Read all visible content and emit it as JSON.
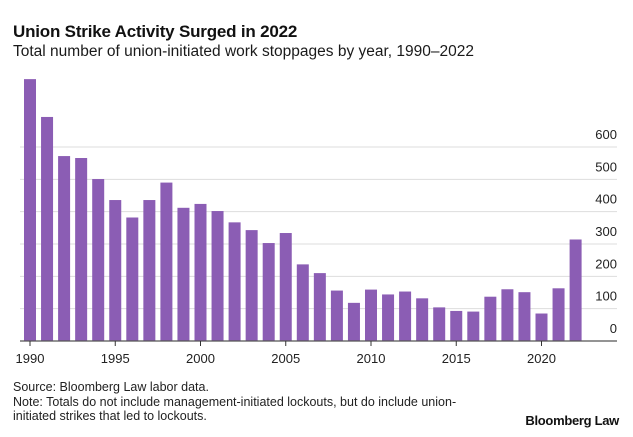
{
  "chart_data": {
    "type": "bar",
    "title": "Union Strike Activity Surged in 2022",
    "subtitle": "Total number of union-initiated work stoppages by year, 1990–2022",
    "xlabel": "",
    "ylabel": "",
    "categories": [
      1990,
      1991,
      1992,
      1993,
      1994,
      1995,
      1996,
      1997,
      1998,
      1999,
      2000,
      2001,
      2002,
      2003,
      2004,
      2005,
      2006,
      2007,
      2008,
      2009,
      2010,
      2011,
      2012,
      2013,
      2014,
      2015,
      2016,
      2017,
      2018,
      2019,
      2020,
      2021,
      2022
    ],
    "values": [
      810,
      693,
      572,
      566,
      501,
      436,
      382,
      436,
      490,
      412,
      424,
      402,
      367,
      343,
      303,
      334,
      237,
      210,
      156,
      118,
      159,
      144,
      153,
      132,
      104,
      93,
      91,
      137,
      160,
      151,
      85,
      163,
      314
    ],
    "ylim": [
      0,
      600
    ],
    "yticks": [
      0,
      100,
      200,
      300,
      400,
      500,
      600
    ],
    "xticks": [
      1990,
      1995,
      2000,
      2005,
      2010,
      2015,
      2020
    ],
    "grid": true,
    "y_axis_side": "right",
    "bar_color": "#8B5DB4"
  },
  "footer": {
    "source": "Source: Bloomberg Law labor data.",
    "note_line1": "Note: Totals do not include management-initiated lockouts, but do include union-",
    "note_line2": "initiated strikes that led to lockouts."
  },
  "branding": {
    "logo_text": "Bloomberg Law"
  }
}
